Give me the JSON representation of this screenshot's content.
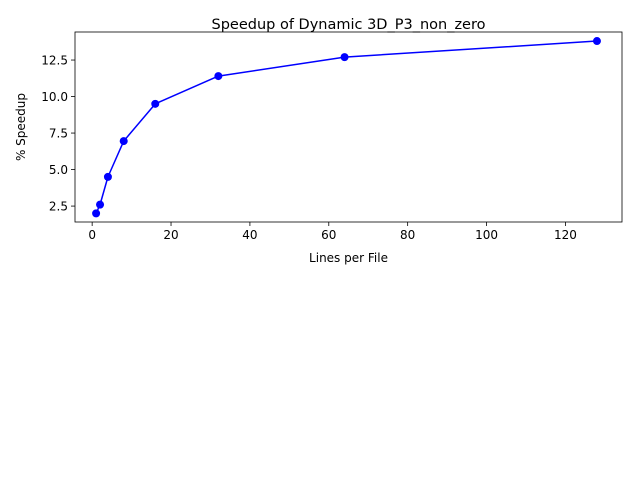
{
  "chart_data": {
    "type": "line",
    "title": "Speedup of Dynamic 3D_P3_non_zero",
    "xlabel": "Lines per File",
    "ylabel": "% Speedup",
    "xlim": [
      -4.35,
      134.35
    ],
    "ylim": [
      1.41,
      14.42
    ],
    "xticks": [
      0,
      20,
      40,
      60,
      80,
      100,
      120
    ],
    "yticks": [
      2.5,
      5.0,
      7.5,
      10.0,
      12.5
    ],
    "ytick_labels": [
      "2.5",
      "5.0",
      "7.5",
      "10.0",
      "12.5"
    ],
    "grid": false,
    "series": [
      {
        "color": "#0000ff",
        "marker": "circle",
        "x": [
          1,
          2,
          4,
          8,
          16,
          32,
          64,
          128
        ],
        "y": [
          2.0,
          2.6,
          4.5,
          6.95,
          9.5,
          11.4,
          12.7,
          13.8
        ]
      }
    ]
  }
}
